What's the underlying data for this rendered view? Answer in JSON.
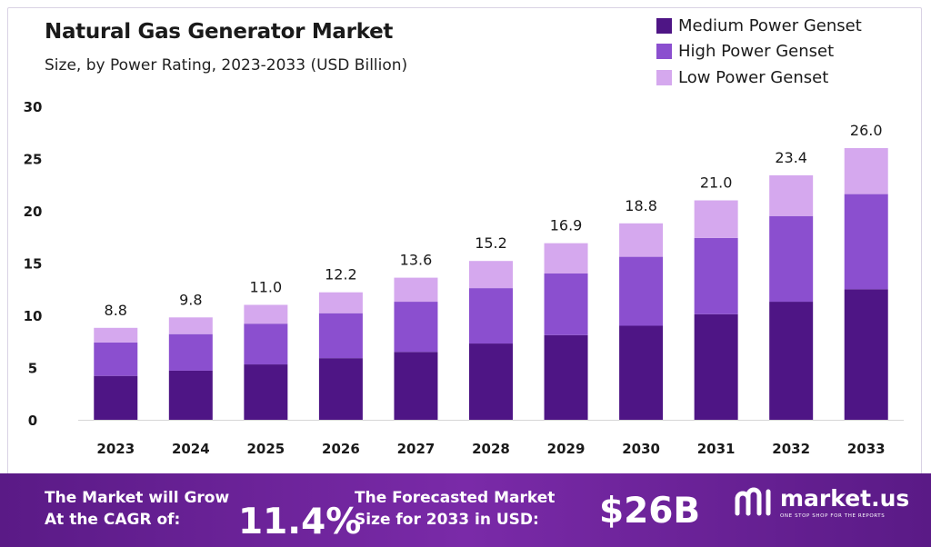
{
  "chart_data": {
    "type": "bar",
    "stacked": true,
    "title": "Natural Gas Generator Market",
    "subtitle": "Size, by Power Rating, 2023-2033 (USD Billion)",
    "categories": [
      "2023",
      "2024",
      "2025",
      "2026",
      "2027",
      "2028",
      "2029",
      "2030",
      "2031",
      "2032",
      "2033"
    ],
    "series": [
      {
        "name": "Medium Power Genset",
        "color": "#4e1585",
        "values": [
          4.2,
          4.7,
          5.3,
          5.9,
          6.5,
          7.3,
          8.1,
          9.0,
          10.1,
          11.3,
          12.5
        ]
      },
      {
        "name": "High Power Genset",
        "color": "#8b4fcf",
        "values": [
          3.2,
          3.5,
          3.9,
          4.3,
          4.8,
          5.3,
          5.9,
          6.6,
          7.3,
          8.2,
          9.1
        ]
      },
      {
        "name": "Low Power Genset",
        "color": "#d5a8ee",
        "values": [
          1.4,
          1.6,
          1.8,
          2.0,
          2.3,
          2.6,
          2.9,
          3.2,
          3.6,
          3.9,
          4.4
        ]
      }
    ],
    "totals": [
      "8.8",
      "9.8",
      "11.0",
      "12.2",
      "13.6",
      "15.2",
      "16.9",
      "18.8",
      "21.0",
      "23.4",
      "26.0"
    ],
    "yticks": [
      "0",
      "5",
      "10",
      "15",
      "20",
      "25",
      "30"
    ],
    "ylim": [
      0,
      30
    ],
    "grid": false,
    "legend": "top-right"
  },
  "footer": {
    "cagr_line1": "The Market will Grow",
    "cagr_line2": "At the CAGR of:",
    "cagr_value": "11.4%",
    "forecast_line1": "The Forecasted Market",
    "forecast_line2": "Size for 2033 in USD:",
    "forecast_value": "$26B",
    "logo_name": "market.us",
    "logo_tagline": "ONE STOP SHOP FOR THE REPORTS"
  }
}
